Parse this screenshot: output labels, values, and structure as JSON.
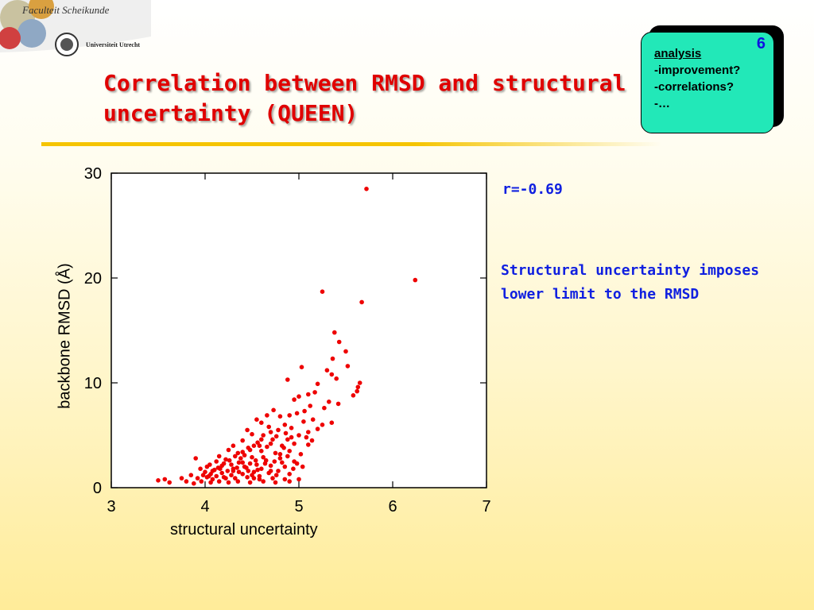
{
  "header": {
    "faculty": "Faculteit Scheikunde",
    "university": "Universiteit Utrecht"
  },
  "title_lines": [
    "Correlation between RMSD and structural",
    "uncertainty (QUEEN)"
  ],
  "note": {
    "number": "6",
    "heading": "analysis",
    "lines": [
      "-improvement?",
      "-correlations?",
      "-…"
    ]
  },
  "annotation": {
    "r_value": "r=-0.69",
    "text": "Structural uncertainty imposes lower limit to the RMSD"
  },
  "colors": {
    "title": "#e00000",
    "accent_text": "#1020e0",
    "points": "#ee0000",
    "note_bg": "#22e8b8",
    "rule": "#f5c400"
  },
  "chart_data": {
    "type": "scatter",
    "xlabel": "structural uncertainty",
    "ylabel": "backbone RMSD (Å)",
    "xlim": [
      3,
      7
    ],
    "ylim": [
      0,
      30
    ],
    "xticks": [
      "3",
      "4",
      "5",
      "6",
      "7"
    ],
    "yticks": [
      "0",
      "10",
      "20",
      "30"
    ],
    "grid": false,
    "points": [
      [
        5.72,
        28.5
      ],
      [
        6.24,
        19.8
      ],
      [
        5.25,
        18.7
      ],
      [
        5.67,
        17.7
      ],
      [
        5.38,
        14.8
      ],
      [
        5.43,
        13.9
      ],
      [
        5.5,
        13.0
      ],
      [
        5.36,
        12.3
      ],
      [
        5.52,
        11.6
      ],
      [
        5.03,
        11.5
      ],
      [
        5.3,
        11.2
      ],
      [
        5.35,
        10.8
      ],
      [
        5.4,
        10.4
      ],
      [
        4.88,
        10.3
      ],
      [
        5.65,
        10.0
      ],
      [
        5.63,
        9.6
      ],
      [
        5.62,
        9.2
      ],
      [
        5.2,
        9.9
      ],
      [
        5.17,
        9.1
      ],
      [
        5.58,
        8.8
      ],
      [
        5.1,
        8.9
      ],
      [
        5.0,
        8.7
      ],
      [
        4.95,
        8.4
      ],
      [
        5.32,
        8.2
      ],
      [
        5.42,
        8.0
      ],
      [
        5.27,
        7.6
      ],
      [
        5.12,
        7.8
      ],
      [
        5.06,
        7.3
      ],
      [
        4.98,
        7.1
      ],
      [
        4.9,
        6.9
      ],
      [
        4.8,
        6.8
      ],
      [
        5.15,
        6.5
      ],
      [
        5.35,
        6.2
      ],
      [
        5.25,
        6.0
      ],
      [
        4.73,
        7.4
      ],
      [
        4.66,
        6.9
      ],
      [
        4.55,
        6.5
      ],
      [
        4.6,
        6.2
      ],
      [
        4.85,
        6.0
      ],
      [
        5.05,
        6.3
      ],
      [
        5.2,
        5.6
      ],
      [
        4.92,
        5.7
      ],
      [
        4.78,
        5.5
      ],
      [
        4.7,
        5.3
      ],
      [
        4.45,
        5.5
      ],
      [
        4.5,
        5.1
      ],
      [
        4.62,
        5.0
      ],
      [
        5.0,
        5.0
      ],
      [
        5.08,
        4.8
      ],
      [
        4.88,
        4.6
      ],
      [
        4.4,
        4.5
      ],
      [
        4.56,
        4.3
      ],
      [
        4.7,
        4.2
      ],
      [
        4.82,
        4.0
      ],
      [
        4.95,
        4.2
      ],
      [
        5.1,
        4.1
      ],
      [
        4.3,
        4.0
      ],
      [
        4.25,
        3.6
      ],
      [
        4.35,
        3.3
      ],
      [
        4.48,
        3.6
      ],
      [
        4.6,
        3.5
      ],
      [
        4.75,
        3.3
      ],
      [
        4.9,
        3.5
      ],
      [
        5.02,
        3.2
      ],
      [
        4.15,
        3.0
      ],
      [
        4.22,
        2.7
      ],
      [
        4.38,
        2.8
      ],
      [
        4.5,
        2.9
      ],
      [
        4.65,
        2.6
      ],
      [
        4.8,
        2.8
      ],
      [
        4.95,
        2.5
      ],
      [
        3.9,
        2.8
      ],
      [
        4.05,
        2.2
      ],
      [
        4.12,
        2.5
      ],
      [
        4.28,
        2.2
      ],
      [
        4.42,
        2.0
      ],
      [
        4.55,
        2.2
      ],
      [
        4.7,
        2.1
      ],
      [
        4.85,
        2.0
      ],
      [
        4.98,
        2.3
      ],
      [
        3.95,
        1.8
      ],
      [
        4.0,
        1.5
      ],
      [
        4.1,
        1.7
      ],
      [
        4.18,
        1.4
      ],
      [
        4.3,
        1.6
      ],
      [
        4.4,
        1.3
      ],
      [
        4.52,
        1.5
      ],
      [
        4.6,
        1.8
      ],
      [
        4.68,
        1.4
      ],
      [
        4.78,
        1.6
      ],
      [
        4.9,
        1.3
      ],
      [
        3.85,
        1.2
      ],
      [
        3.92,
        0.9
      ],
      [
        4.02,
        1.0
      ],
      [
        4.08,
        0.8
      ],
      [
        4.2,
        1.0
      ],
      [
        4.32,
        0.9
      ],
      [
        4.45,
        1.0
      ],
      [
        4.58,
        0.8
      ],
      [
        4.72,
        0.9
      ],
      [
        4.85,
        0.8
      ],
      [
        3.5,
        0.7
      ],
      [
        3.57,
        0.8
      ],
      [
        3.62,
        0.5
      ],
      [
        3.75,
        0.9
      ],
      [
        3.8,
        0.6
      ],
      [
        3.88,
        0.4
      ],
      [
        3.96,
        0.6
      ],
      [
        4.06,
        0.5
      ],
      [
        4.15,
        0.6
      ],
      [
        4.25,
        0.5
      ],
      [
        4.35,
        0.6
      ],
      [
        4.48,
        0.5
      ],
      [
        4.62,
        0.6
      ],
      [
        4.75,
        0.5
      ],
      [
        4.9,
        0.6
      ],
      [
        5.0,
        0.8
      ],
      [
        4.44,
        1.9
      ],
      [
        4.5,
        1.2
      ],
      [
        4.36,
        1.5
      ],
      [
        4.64,
        2.3
      ],
      [
        4.76,
        1.2
      ],
      [
        4.58,
        1.1
      ],
      [
        4.52,
        0.9
      ],
      [
        4.46,
        1.6
      ],
      [
        4.4,
        2.4
      ],
      [
        4.34,
        1.9
      ],
      [
        4.28,
        1.2
      ],
      [
        4.22,
        0.9
      ],
      [
        4.16,
        1.8
      ],
      [
        4.7,
        1.6
      ],
      [
        4.82,
        2.4
      ],
      [
        4.88,
        3.0
      ],
      [
        4.94,
        1.8
      ],
      [
        5.04,
        2.0
      ],
      [
        4.84,
        3.8
      ],
      [
        4.72,
        4.6
      ],
      [
        4.66,
        3.9
      ],
      [
        4.58,
        4.0
      ],
      [
        4.62,
        2.9
      ],
      [
        4.54,
        2.6
      ],
      [
        4.48,
        2.3
      ],
      [
        4.42,
        3.1
      ],
      [
        4.36,
        2.4
      ],
      [
        4.3,
        1.8
      ],
      [
        4.24,
        1.6
      ],
      [
        4.18,
        2.1
      ],
      [
        4.12,
        1.1
      ],
      [
        4.06,
        1.3
      ],
      [
        4.02,
        2.0
      ],
      [
        3.98,
        1.2
      ],
      [
        4.56,
        1.7
      ],
      [
        4.74,
        2.5
      ],
      [
        4.8,
        3.2
      ],
      [
        4.92,
        4.8
      ],
      [
        5.1,
        5.3
      ],
      [
        5.14,
        4.5
      ],
      [
        4.86,
        5.2
      ],
      [
        4.76,
        4.9
      ],
      [
        4.68,
        5.8
      ],
      [
        4.6,
        4.6
      ],
      [
        4.52,
        4.0
      ],
      [
        4.46,
        3.8
      ],
      [
        4.4,
        3.4
      ],
      [
        4.32,
        3.0
      ],
      [
        4.26,
        2.6
      ],
      [
        4.2,
        2.3
      ],
      [
        4.14,
        1.9
      ],
      [
        4.08,
        1.6
      ],
      [
        4.04,
        1.1
      ]
    ]
  }
}
